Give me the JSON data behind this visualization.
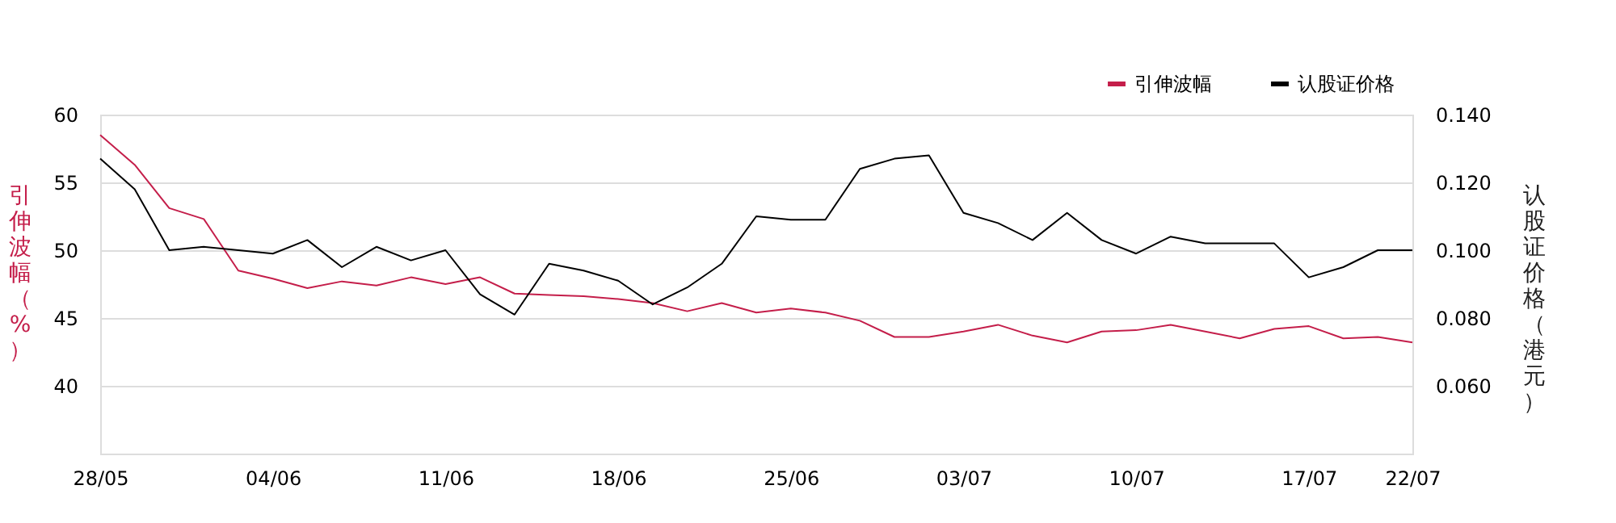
{
  "chart_data": {
    "type": "line",
    "ylabel": "引伸波幅（%）",
    "y2label": "认股证价格（港元）",
    "categories": [
      "28/05",
      null,
      null,
      null,
      null,
      "04/06",
      null,
      null,
      null,
      null,
      "11/06",
      null,
      null,
      null,
      null,
      "18/06",
      null,
      null,
      null,
      null,
      "25/06",
      null,
      null,
      null,
      null,
      "03/07",
      null,
      null,
      null,
      null,
      "10/07",
      null,
      null,
      null,
      null,
      "17/07",
      null,
      null,
      "22/07"
    ],
    "series": [
      {
        "name": "引伸波幅",
        "color": "#c41e4a",
        "values": [
          58.5,
          56.3,
          53.1,
          52.3,
          48.5,
          47.9,
          47.2,
          47.7,
          47.4,
          48.0,
          47.5,
          48.0,
          46.8,
          46.7,
          46.6,
          46.4,
          46.1,
          45.5,
          46.1,
          45.4,
          45.7,
          45.4,
          44.8,
          43.6,
          43.6,
          44.0,
          44.5,
          43.7,
          43.2,
          44.0,
          44.1,
          44.5,
          44.0,
          43.5,
          44.2,
          44.4,
          43.5,
          43.6,
          43.2
        ]
      },
      {
        "name": "认股证价格",
        "color": "#000000",
        "axis": "y2",
        "values": [
          0.127,
          0.118,
          0.1,
          0.101,
          0.1,
          0.099,
          0.103,
          0.095,
          0.101,
          0.097,
          0.1,
          0.087,
          0.081,
          0.096,
          0.094,
          0.091,
          0.084,
          0.089,
          0.096,
          0.11,
          0.109,
          0.109,
          0.124,
          0.127,
          0.128,
          0.111,
          0.108,
          0.103,
          0.111,
          0.103,
          0.099,
          0.104,
          0.102,
          0.102,
          0.102,
          0.092,
          0.095,
          0.1,
          0.1
        ]
      }
    ],
    "ylim": [
      35,
      60
    ],
    "yticks": [
      40,
      45,
      50,
      55,
      60
    ],
    "y2lim": [
      0.04,
      0.14
    ],
    "y2ticks": [
      {
        "value": 0.06,
        "label": "0.060"
      },
      {
        "value": 0.08,
        "label": "0.080"
      },
      {
        "value": 0.1,
        "label": "0.100"
      },
      {
        "value": 0.12,
        "label": "0.120"
      },
      {
        "value": 0.14,
        "label": "0.140"
      }
    ],
    "grid": "y",
    "legend": "top right",
    "marker": "none",
    "line_style": "solid"
  }
}
